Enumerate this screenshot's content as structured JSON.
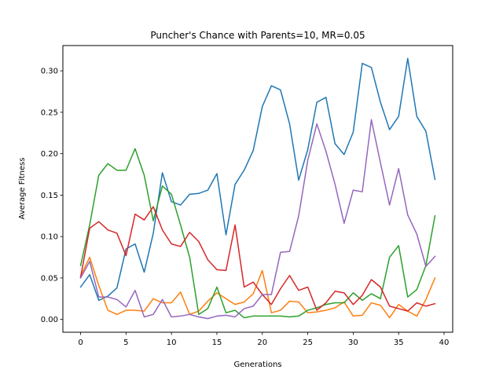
{
  "chart_data": {
    "type": "line",
    "title": "Puncher's Chance with Parents=10, MR=0.05",
    "xlabel": "Generations",
    "ylabel": "Average Fitness",
    "xlim": [
      -1.95,
      40.95
    ],
    "ylim": [
      -0.0155,
      0.3305
    ],
    "xticks": [
      0,
      5,
      10,
      15,
      20,
      25,
      30,
      35,
      40
    ],
    "yticks": [
      0.0,
      0.05,
      0.1,
      0.15,
      0.2,
      0.25,
      0.3
    ],
    "ytick_labels": [
      "0.00",
      "0.05",
      "0.10",
      "0.15",
      "0.20",
      "0.25",
      "0.30"
    ],
    "grid": false,
    "x": [
      0,
      1,
      2,
      3,
      4,
      5,
      6,
      7,
      8,
      9,
      10,
      11,
      12,
      13,
      14,
      15,
      16,
      17,
      18,
      19,
      20,
      21,
      22,
      23,
      24,
      25,
      26,
      27,
      28,
      29,
      30,
      31,
      32,
      33,
      34,
      35,
      36,
      37,
      38,
      39
    ],
    "series": [
      {
        "color": "#1f77b4",
        "values": [
          0.039,
          0.054,
          0.023,
          0.028,
          0.038,
          0.085,
          0.091,
          0.057,
          0.104,
          0.177,
          0.142,
          0.138,
          0.151,
          0.152,
          0.156,
          0.176,
          0.102,
          0.163,
          0.18,
          0.204,
          0.257,
          0.282,
          0.277,
          0.236,
          0.168,
          0.205,
          0.262,
          0.268,
          0.212,
          0.199,
          0.226,
          0.309,
          0.304,
          0.262,
          0.229,
          0.245,
          0.315,
          0.245,
          0.227,
          0.169
        ]
      },
      {
        "color": "#ff7f0e",
        "values": [
          0.052,
          0.075,
          0.041,
          0.011,
          0.006,
          0.011,
          0.011,
          0.01,
          0.025,
          0.02,
          0.02,
          0.033,
          0.006,
          0.01,
          0.022,
          0.032,
          0.025,
          0.018,
          0.021,
          0.031,
          0.059,
          0.008,
          0.011,
          0.022,
          0.021,
          0.008,
          0.009,
          0.011,
          0.014,
          0.021,
          0.004,
          0.005,
          0.02,
          0.017,
          0.002,
          0.018,
          0.01,
          0.004,
          0.024,
          0.05
        ]
      },
      {
        "color": "#2ca02c",
        "values": [
          0.065,
          0.114,
          0.174,
          0.188,
          0.18,
          0.18,
          0.206,
          0.174,
          0.119,
          0.161,
          0.151,
          0.114,
          0.075,
          0.006,
          0.013,
          0.039,
          0.008,
          0.011,
          0.002,
          0.004,
          0.004,
          0.004,
          0.004,
          0.003,
          0.004,
          0.011,
          0.014,
          0.018,
          0.02,
          0.02,
          0.032,
          0.023,
          0.031,
          0.025,
          0.075,
          0.089,
          0.027,
          0.036,
          0.065,
          0.125
        ]
      },
      {
        "color": "#d62728",
        "values": [
          0.051,
          0.11,
          0.118,
          0.108,
          0.104,
          0.077,
          0.127,
          0.12,
          0.136,
          0.108,
          0.091,
          0.088,
          0.105,
          0.094,
          0.072,
          0.06,
          0.059,
          0.114,
          0.039,
          0.045,
          0.03,
          0.018,
          0.037,
          0.053,
          0.035,
          0.039,
          0.011,
          0.02,
          0.034,
          0.032,
          0.018,
          0.029,
          0.048,
          0.039,
          0.016,
          0.013,
          0.01,
          0.02,
          0.016,
          0.019
        ]
      },
      {
        "color": "#9467bd",
        "values": [
          0.05,
          0.07,
          0.027,
          0.027,
          0.024,
          0.015,
          0.035,
          0.003,
          0.006,
          0.024,
          0.003,
          0.004,
          0.006,
          0.003,
          0.001,
          0.004,
          0.005,
          0.003,
          0.013,
          0.016,
          0.03,
          0.03,
          0.081,
          0.082,
          0.125,
          0.192,
          0.236,
          0.203,
          0.163,
          0.116,
          0.156,
          0.154,
          0.241,
          0.189,
          0.138,
          0.182,
          0.126,
          0.103,
          0.064,
          0.076
        ]
      }
    ]
  }
}
